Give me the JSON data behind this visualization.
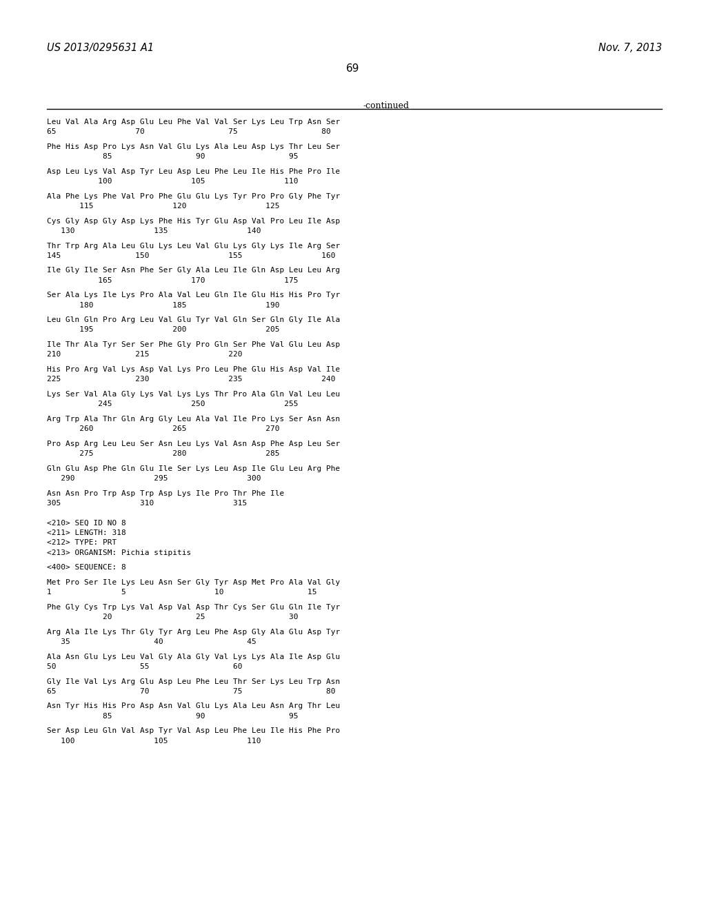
{
  "header_left": "US 2013/0295631 A1",
  "header_right": "Nov. 7, 2013",
  "page_number": "69",
  "continued_label": "-continued",
  "background_color": "#ffffff",
  "text_color": "#000000",
  "lines": [
    "Leu Val Ala Arg Asp Glu Leu Phe Val Val Ser Lys Leu Trp Asn Ser",
    "65                 70                  75                  80",
    "",
    "Phe His Asp Pro Lys Asn Val Glu Lys Ala Leu Asp Lys Thr Leu Ser",
    "            85                  90                  95",
    "",
    "Asp Leu Lys Val Asp Tyr Leu Asp Leu Phe Leu Ile His Phe Pro Ile",
    "           100                 105                 110",
    "",
    "Ala Phe Lys Phe Val Pro Phe Glu Glu Lys Tyr Pro Pro Gly Phe Tyr",
    "       115                 120                 125",
    "",
    "Cys Gly Asp Gly Asp Lys Phe His Tyr Glu Asp Val Pro Leu Ile Asp",
    "   130                 135                 140",
    "",
    "Thr Trp Arg Ala Leu Glu Lys Leu Val Glu Lys Gly Lys Ile Arg Ser",
    "145                150                 155                 160",
    "",
    "Ile Gly Ile Ser Asn Phe Ser Gly Ala Leu Ile Gln Asp Leu Leu Arg",
    "           165                 170                 175",
    "",
    "Ser Ala Lys Ile Lys Pro Ala Val Leu Gln Ile Glu His His Pro Tyr",
    "       180                 185                 190",
    "",
    "Leu Gln Gln Pro Arg Leu Val Glu Tyr Val Gln Ser Gln Gly Ile Ala",
    "       195                 200                 205",
    "",
    "Ile Thr Ala Tyr Ser Ser Phe Gly Pro Gln Ser Phe Val Glu Leu Asp",
    "210                215                 220",
    "",
    "His Pro Arg Val Lys Asp Val Lys Pro Leu Phe Glu His Asp Val Ile",
    "225                230                 235                 240",
    "",
    "Lys Ser Val Ala Gly Lys Val Lys Lys Thr Pro Ala Gln Val Leu Leu",
    "           245                 250                 255",
    "",
    "Arg Trp Ala Thr Gln Arg Gly Leu Ala Val Ile Pro Lys Ser Asn Asn",
    "       260                 265                 270",
    "",
    "Pro Asp Arg Leu Leu Ser Asn Leu Lys Val Asn Asp Phe Asp Leu Ser",
    "       275                 280                 285",
    "",
    "Gln Glu Asp Phe Gln Glu Ile Ser Lys Leu Asp Ile Glu Leu Arg Phe",
    "   290                 295                 300",
    "",
    "Asn Asn Pro Trp Asp Trp Asp Lys Ile Pro Thr Phe Ile",
    "305                 310                 315",
    "",
    "",
    "<210> SEQ ID NO 8",
    "<211> LENGTH: 318",
    "<212> TYPE: PRT",
    "<213> ORGANISM: Pichia stipitis",
    "",
    "<400> SEQUENCE: 8",
    "",
    "Met Pro Ser Ile Lys Leu Asn Ser Gly Tyr Asp Met Pro Ala Val Gly",
    "1               5                   10                  15",
    "",
    "Phe Gly Cys Trp Lys Val Asp Val Asp Thr Cys Ser Glu Gln Ile Tyr",
    "            20                  25                  30",
    "",
    "Arg Ala Ile Lys Thr Gly Tyr Arg Leu Phe Asp Gly Ala Glu Asp Tyr",
    "   35                  40                  45",
    "",
    "Ala Asn Glu Lys Leu Val Gly Ala Gly Val Lys Lys Ala Ile Asp Glu",
    "50                  55                  60",
    "",
    "Gly Ile Val Lys Arg Glu Asp Leu Phe Leu Thr Ser Lys Leu Trp Asn",
    "65                  70                  75                  80",
    "",
    "Asn Tyr His His Pro Asp Asn Val Glu Lys Ala Leu Asn Arg Thr Leu",
    "            85                  90                  95",
    "",
    "Ser Asp Leu Gln Val Asp Tyr Val Asp Leu Phe Leu Ile His Phe Pro",
    "   100                 105                 110"
  ]
}
